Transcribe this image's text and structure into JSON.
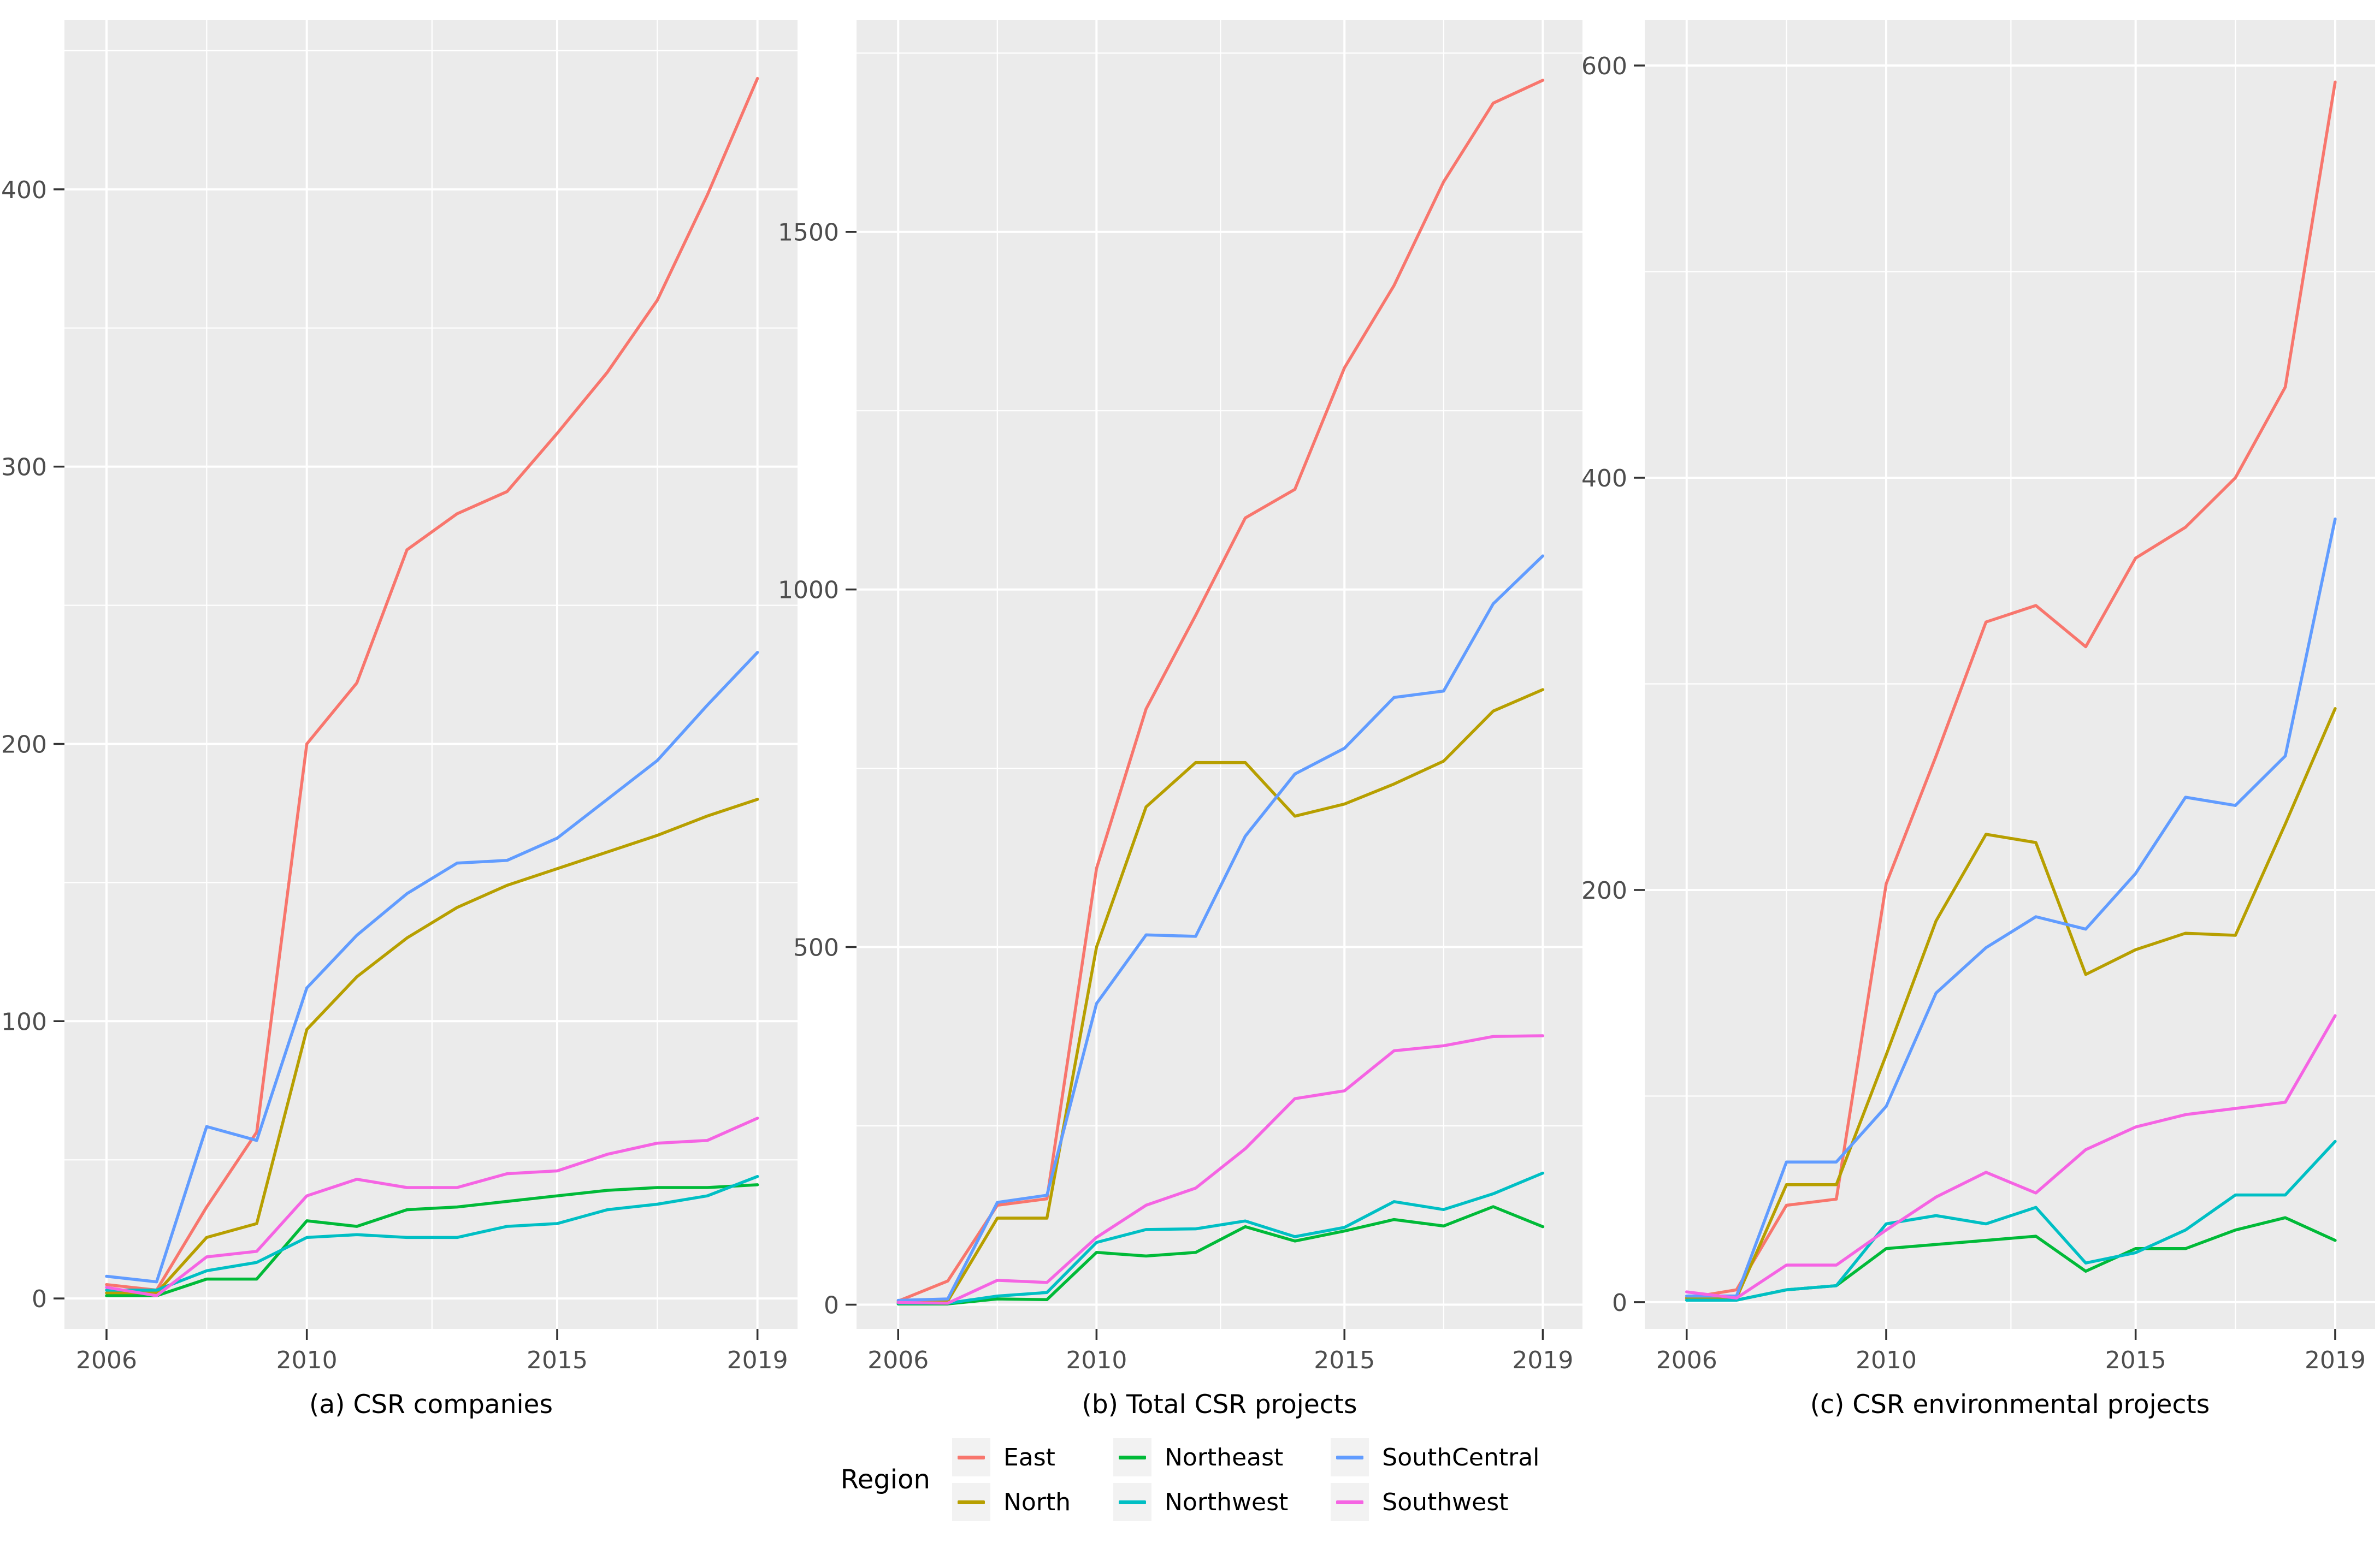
{
  "figure": {
    "background_color": "#FFFFFF",
    "panel_background_color": "#EBEBEB",
    "gridline_color": "#FFFFFF",
    "tick_mark_color": "#333333",
    "tick_label_color": "#4D4D4D",
    "legend_key_background": "#F2F2F2"
  },
  "legend": {
    "title": "Region",
    "items": [
      {
        "label": "East",
        "color": "#F8766D"
      },
      {
        "label": "North",
        "color": "#B79F00"
      },
      {
        "label": "Northeast",
        "color": "#00BA38"
      },
      {
        "label": "Northwest",
        "color": "#00BFC4"
      },
      {
        "label": "SouthCentral",
        "color": "#619CFF"
      },
      {
        "label": "Southwest",
        "color": "#F564E3"
      }
    ]
  },
  "chart_data": [
    {
      "type": "line",
      "caption": "(a) CSR companies",
      "years": [
        2006,
        2007,
        2008,
        2009,
        2010,
        2011,
        2012,
        2013,
        2014,
        2015,
        2016,
        2017,
        2018,
        2019
      ],
      "x_ticks": [
        2006,
        2010,
        2015,
        2019
      ],
      "x_tick_labels": [
        "2006",
        "2010",
        "2015",
        "2019"
      ],
      "x_minor_gridlines": [
        2008,
        2012.5,
        2017
      ],
      "x_domain": [
        2005.16,
        2019.8
      ],
      "y_ticks": [
        0,
        100,
        200,
        300,
        400
      ],
      "y_tick_labels": [
        "0",
        "100",
        "200",
        "300",
        "400"
      ],
      "y_minor_gridlines": [
        50,
        150,
        250,
        350,
        450
      ],
      "y_domain": [
        -11,
        461
      ],
      "grid": true,
      "series": [
        {
          "name": "East",
          "color": "#F8766D",
          "values": [
            5,
            3,
            33,
            60,
            200,
            222,
            270,
            283,
            291,
            312,
            334,
            360,
            398,
            440
          ]
        },
        {
          "name": "North",
          "color": "#B79F00",
          "values": [
            2,
            2,
            22,
            27,
            97,
            116,
            130,
            141,
            149,
            155,
            161,
            167,
            174,
            180
          ]
        },
        {
          "name": "Northeast",
          "color": "#00BA38",
          "values": [
            1,
            1,
            7,
            7,
            28,
            26,
            32,
            33,
            35,
            37,
            39,
            40,
            40,
            41
          ]
        },
        {
          "name": "Northwest",
          "color": "#00BFC4",
          "values": [
            3,
            3,
            10,
            13,
            22,
            23,
            22,
            22,
            26,
            27,
            32,
            34,
            37,
            44
          ]
        },
        {
          "name": "SouthCentral",
          "color": "#619CFF",
          "values": [
            8,
            6,
            62,
            57,
            112,
            131,
            146,
            157,
            158,
            166,
            180,
            194,
            214,
            233
          ]
        },
        {
          "name": "Southwest",
          "color": "#F564E3",
          "values": [
            4,
            1,
            15,
            17,
            37,
            43,
            40,
            40,
            45,
            46,
            52,
            56,
            57,
            65
          ]
        }
      ]
    },
    {
      "type": "line",
      "caption": "(b) Total CSR projects",
      "years": [
        2006,
        2007,
        2008,
        2009,
        2010,
        2011,
        2012,
        2013,
        2014,
        2015,
        2016,
        2017,
        2018,
        2019
      ],
      "x_ticks": [
        2006,
        2010,
        2015,
        2019
      ],
      "x_tick_labels": [
        "2006",
        "2010",
        "2015",
        "2019"
      ],
      "x_minor_gridlines": [
        2008,
        2012.5,
        2017
      ],
      "x_domain": [
        2005.16,
        2019.8
      ],
      "y_ticks": [
        0,
        500,
        1000,
        1500
      ],
      "y_tick_labels": [
        "0",
        "500",
        "1000",
        "1500"
      ],
      "y_minor_gridlines": [
        250,
        750,
        1250,
        1750
      ],
      "y_domain": [
        -34,
        1796
      ],
      "grid": true,
      "series": [
        {
          "name": "East",
          "color": "#F8766D",
          "values": [
            5,
            33,
            139,
            148,
            610,
            833,
            964,
            1100,
            1140,
            1310,
            1425,
            1570,
            1680,
            1712
          ]
        },
        {
          "name": "North",
          "color": "#B79F00",
          "values": [
            3,
            5,
            121,
            121,
            500,
            696,
            758,
            758,
            683,
            700,
            728,
            760,
            830,
            860
          ]
        },
        {
          "name": "Northeast",
          "color": "#00BA38",
          "values": [
            1,
            1,
            8,
            7,
            73,
            68,
            73,
            109,
            89,
            103,
            119,
            110,
            137,
            109
          ]
        },
        {
          "name": "Northwest",
          "color": "#00BFC4",
          "values": [
            2,
            2,
            12,
            17,
            87,
            105,
            106,
            117,
            95,
            108,
            144,
            133,
            155,
            184
          ]
        },
        {
          "name": "SouthCentral",
          "color": "#619CFF",
          "values": [
            6,
            8,
            143,
            153,
            421,
            517,
            515,
            655,
            742,
            778,
            849,
            858,
            980,
            1047
          ]
        },
        {
          "name": "Southwest",
          "color": "#F564E3",
          "values": [
            3,
            2,
            34,
            31,
            94,
            139,
            163,
            218,
            288,
            299,
            355,
            362,
            375,
            376
          ]
        }
      ]
    },
    {
      "type": "line",
      "caption": "(c) CSR environmental projects",
      "years": [
        2006,
        2007,
        2008,
        2009,
        2010,
        2011,
        2012,
        2013,
        2014,
        2015,
        2016,
        2017,
        2018,
        2019
      ],
      "x_ticks": [
        2006,
        2010,
        2015,
        2019
      ],
      "x_tick_labels": [
        "2006",
        "2010",
        "2015",
        "2019"
      ],
      "x_minor_gridlines": [
        2008,
        2012.5,
        2017
      ],
      "x_domain": [
        2005.16,
        2019.8
      ],
      "y_ticks": [
        0,
        200,
        400,
        600
      ],
      "y_tick_labels": [
        "0",
        "200",
        "400",
        "600"
      ],
      "y_minor_gridlines": [
        100,
        300,
        500
      ],
      "y_domain": [
        -13,
        622
      ],
      "grid": true,
      "series": [
        {
          "name": "East",
          "color": "#F8766D",
          "values": [
            2,
            6,
            47,
            50,
            203,
            265,
            330,
            338,
            318,
            361,
            376,
            400,
            444,
            592
          ]
        },
        {
          "name": "North",
          "color": "#B79F00",
          "values": [
            2,
            2,
            57,
            57,
            120,
            185,
            227,
            223,
            159,
            171,
            179,
            178,
            232,
            288
          ]
        },
        {
          "name": "Northeast",
          "color": "#00BA38",
          "values": [
            1,
            1,
            6,
            8,
            26,
            28,
            30,
            32,
            15,
            26,
            26,
            35,
            41,
            30
          ]
        },
        {
          "name": "Northwest",
          "color": "#00BFC4",
          "values": [
            1,
            1,
            6,
            8,
            38,
            42,
            38,
            46,
            19,
            24,
            35,
            52,
            52,
            78
          ]
        },
        {
          "name": "SouthCentral",
          "color": "#619CFF",
          "values": [
            3,
            3,
            68,
            68,
            95,
            150,
            172,
            187,
            181,
            208,
            245,
            241,
            265,
            380
          ]
        },
        {
          "name": "Southwest",
          "color": "#F564E3",
          "values": [
            5,
            2,
            18,
            18,
            35,
            51,
            63,
            53,
            74,
            85,
            91,
            94,
            97,
            139
          ]
        }
      ]
    }
  ]
}
